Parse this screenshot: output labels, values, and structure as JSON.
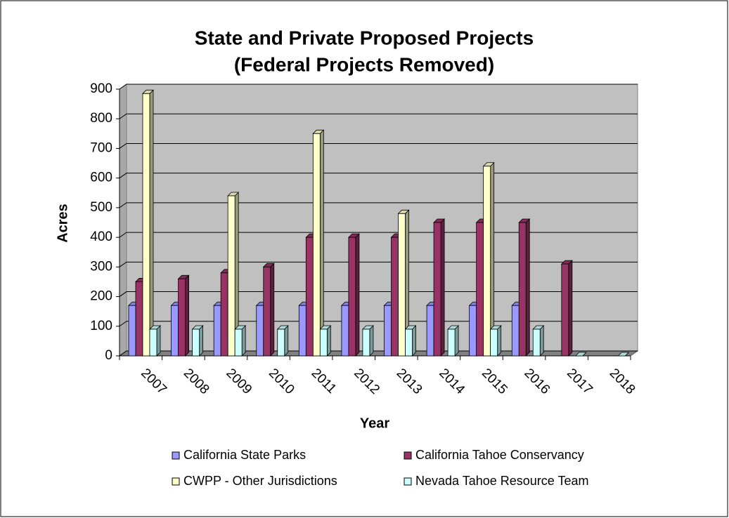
{
  "chart_data": {
    "type": "bar3d",
    "title": "State and Private Proposed Projects",
    "subtitle": "(Federal Projects Removed)",
    "x_label": "Year",
    "y_label": "Acres",
    "categories": [
      "2007",
      "2008",
      "2009",
      "2010",
      "2011",
      "2012",
      "2013",
      "2014",
      "2015",
      "2016",
      "2017",
      "2018"
    ],
    "series": [
      {
        "name": "California State Parks",
        "color": "#9999ff",
        "values": [
          170,
          170,
          170,
          170,
          170,
          170,
          170,
          170,
          170,
          170,
          null,
          null
        ]
      },
      {
        "name": "California Tahoe Conservancy",
        "color": "#993366",
        "values": [
          250,
          260,
          280,
          300,
          400,
          400,
          400,
          450,
          450,
          450,
          310,
          null
        ]
      },
      {
        "name": "CWPP - Other Jurisdictions",
        "color": "#ffffcc",
        "values": [
          885,
          null,
          540,
          null,
          750,
          null,
          480,
          null,
          640,
          null,
          null,
          null
        ]
      },
      {
        "name": "Nevada Tahoe Resource Team",
        "color": "#ccffff",
        "values": [
          90,
          90,
          90,
          90,
          90,
          90,
          90,
          90,
          90,
          90,
          0,
          0
        ]
      }
    ],
    "ylim": [
      0,
      900
    ],
    "yticks": [
      0,
      100,
      200,
      300,
      400,
      500,
      600,
      700,
      800,
      900
    ],
    "grid": true
  }
}
